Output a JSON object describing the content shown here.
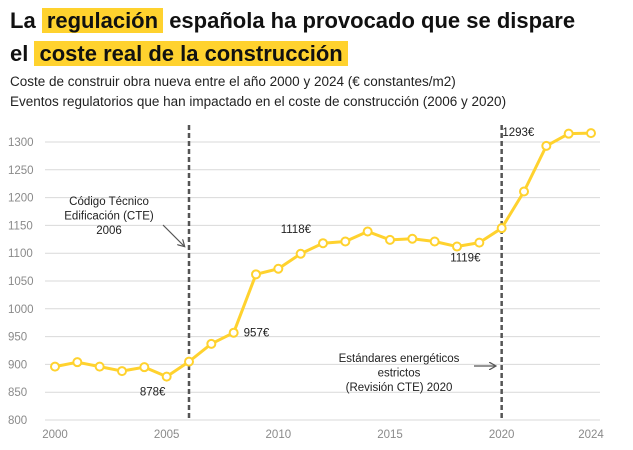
{
  "title": {
    "part1": "La",
    "highlight1": "regulación",
    "part2": "española ha provocado que se dispare",
    "part3": "el",
    "highlight2": "coste real de la construcción"
  },
  "subtitle": {
    "line1": "Coste de construir obra nueva entre el año 2000 y 2024 (€ constantes/m2)",
    "line2": "Eventos regulatorios que han impactado en el coste de construcción (2006 y 2020)"
  },
  "colors": {
    "line": "#ffd22e",
    "highlight": "#ffd22e",
    "grid": "#d9d9d9",
    "event": "#555555",
    "axis": "#999999"
  },
  "chart_data": {
    "type": "line",
    "title": "Coste de construir obra nueva entre el año 2000 y 2024 (€ constantes/m2)",
    "xlabel": "",
    "ylabel": "",
    "x": [
      2000,
      2001,
      2002,
      2003,
      2004,
      2005,
      2006,
      2007,
      2008,
      2009,
      2010,
      2011,
      2012,
      2013,
      2014,
      2015,
      2016,
      2017,
      2018,
      2019,
      2020,
      2021,
      2022,
      2023,
      2024
    ],
    "series": [
      {
        "name": "Coste real (€ constantes/m2)",
        "values": [
          896,
          904,
          896,
          888,
          895,
          878,
          905,
          937,
          957,
          1062,
          1072,
          1099,
          1118,
          1121,
          1139,
          1124,
          1126,
          1121,
          1112,
          1119,
          1145,
          1211,
          1293,
          1315,
          1316
        ]
      }
    ],
    "xlim": [
      2000,
      2024
    ],
    "ylim": [
      800,
      1300
    ],
    "xticks": [
      2000,
      2005,
      2010,
      2015,
      2020,
      2024
    ],
    "yticks": [
      800,
      850,
      900,
      950,
      1000,
      1050,
      1100,
      1150,
      1200,
      1250,
      1300
    ],
    "grid": true,
    "data_labels": [
      {
        "x": 2005,
        "y": 878,
        "text": "878€",
        "pos": "below-left"
      },
      {
        "x": 2008,
        "y": 957,
        "text": "957€",
        "pos": "right"
      },
      {
        "x": 2012,
        "y": 1118,
        "text": "1118€",
        "pos": "above-left"
      },
      {
        "x": 2019,
        "y": 1119,
        "text": "1119€",
        "pos": "below-left"
      },
      {
        "x": 2022,
        "y": 1293,
        "text": "1293€",
        "pos": "above-left"
      }
    ],
    "events": [
      {
        "year": 2006,
        "lines": [
          "Código Técnico",
          "Edificación (CTE)",
          "2006"
        ]
      },
      {
        "year": 2020,
        "lines": [
          "Estándares energéticos",
          "estrictos",
          "(Revisión CTE) 2020"
        ]
      }
    ]
  }
}
